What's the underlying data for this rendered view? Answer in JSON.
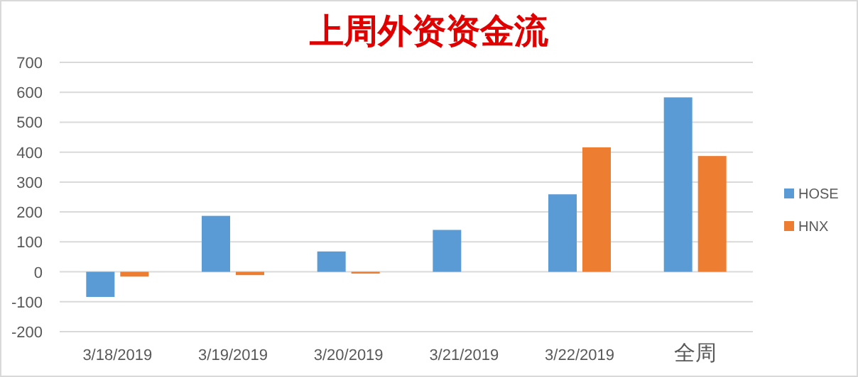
{
  "chart_data": {
    "type": "bar",
    "title": "上周外资资金流",
    "categories": [
      "3/18/2019",
      "3/19/2019",
      "3/20/2019",
      "3/21/2019",
      "3/22/2019",
      "全周"
    ],
    "series": [
      {
        "name": "HOSE",
        "color": "#5b9bd5",
        "values": [
          -84,
          187,
          68,
          140,
          259,
          583
        ]
      },
      {
        "name": "HNX",
        "color": "#ed7d31",
        "values": [
          -16,
          -11,
          -6,
          0,
          416,
          387
        ]
      }
    ],
    "ylim": [
      -200,
      700
    ],
    "yticks": [
      -200,
      -100,
      0,
      100,
      200,
      300,
      400,
      500,
      600,
      700
    ],
    "grid": "y",
    "legend": "right"
  }
}
